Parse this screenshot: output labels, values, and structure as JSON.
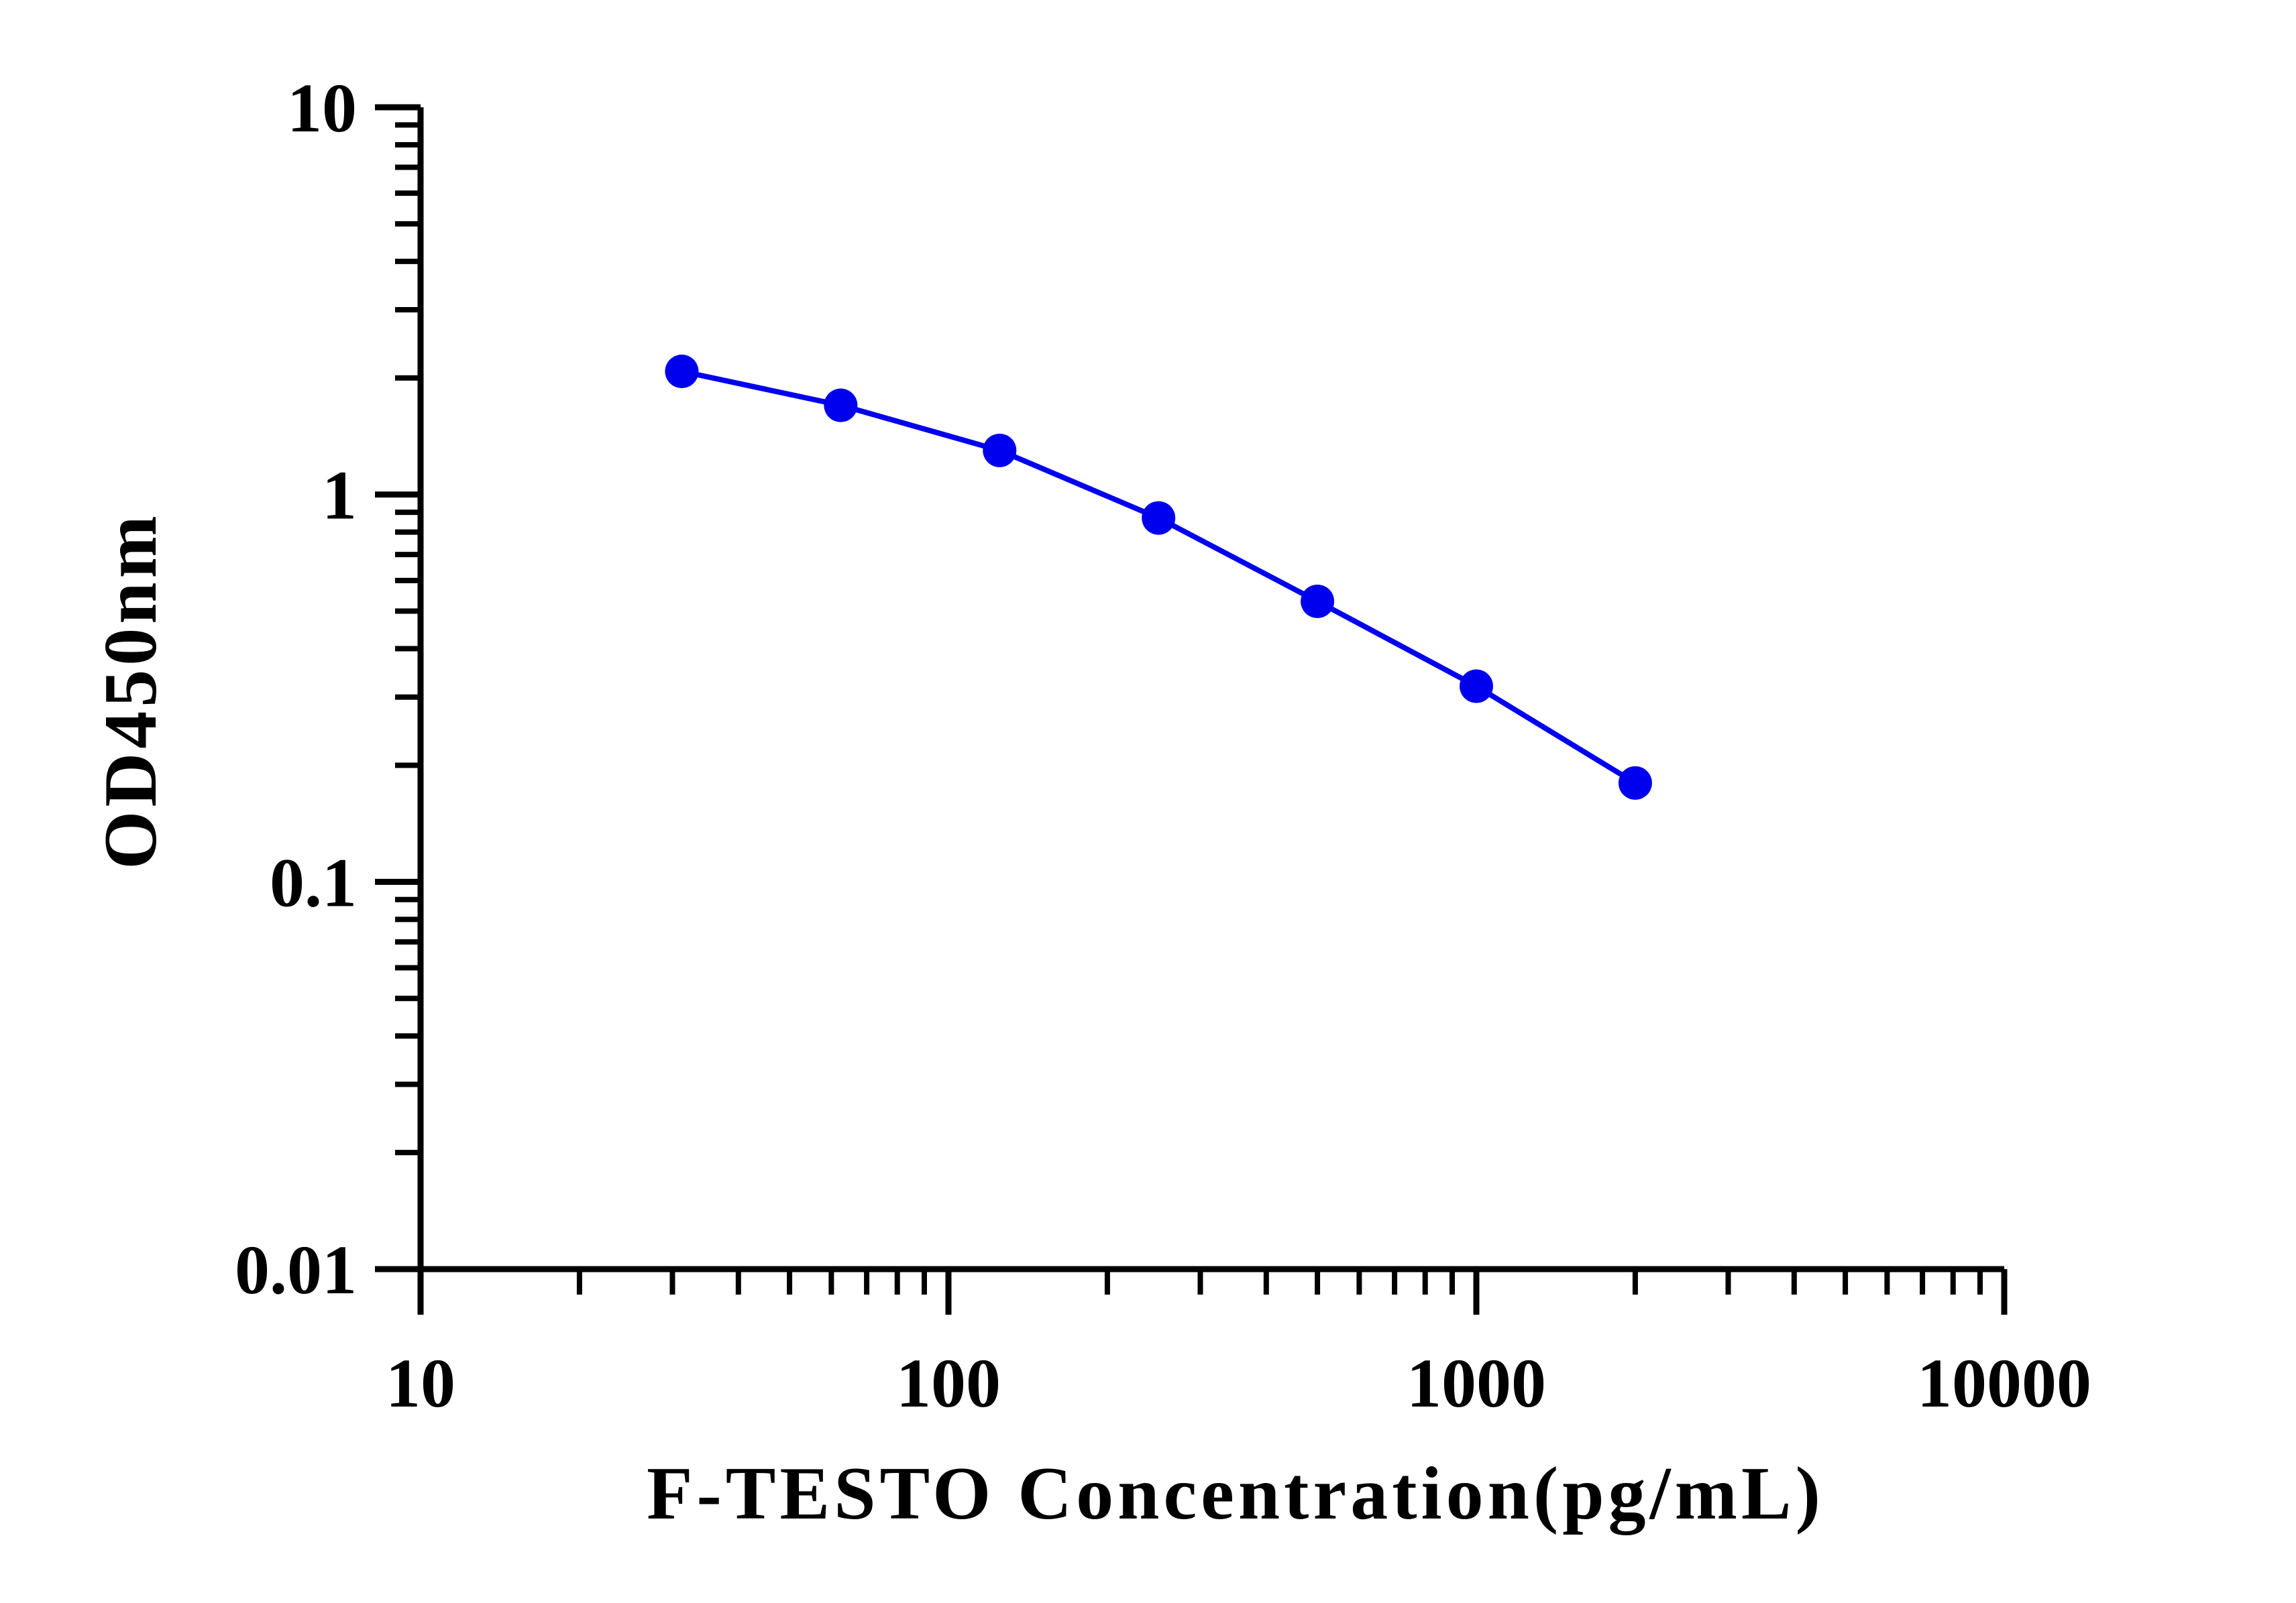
{
  "chart_data": {
    "type": "line",
    "title": "",
    "xlabel": "F-TESTO Concentration(pg/mL)",
    "ylabel": "OD450nm",
    "x_scale": "log",
    "y_scale": "log",
    "xlim": [
      10,
      10000
    ],
    "ylim": [
      0.01,
      10
    ],
    "x_ticks": [
      "10",
      "100",
      "1000",
      "10000"
    ],
    "y_ticks": [
      "0.01",
      "0.1",
      "1",
      "10"
    ],
    "grid": false,
    "legend": "none",
    "series": [
      {
        "color": "#0000ee",
        "marker": "circle",
        "points": [
          {
            "x": 31.25,
            "y": 2.08
          },
          {
            "x": 62.5,
            "y": 1.7
          },
          {
            "x": 125,
            "y": 1.3
          },
          {
            "x": 250,
            "y": 0.87
          },
          {
            "x": 500,
            "y": 0.53
          },
          {
            "x": 1000,
            "y": 0.32
          },
          {
            "x": 2000,
            "y": 0.18
          }
        ]
      }
    ]
  }
}
